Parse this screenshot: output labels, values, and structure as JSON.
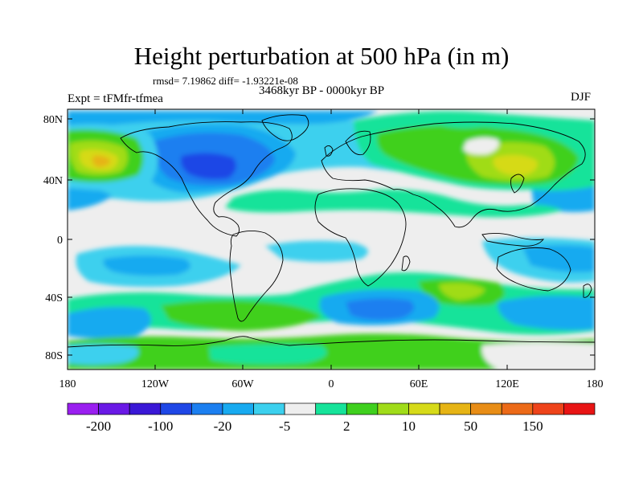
{
  "title": "Height perturbation at 500 hPa (in m)",
  "stats": "rmsd= 7.19862 diff= -1.93221e-08",
  "period": "3468kyr BP - 0000kyr BP",
  "experiment": "Expt = tFMfr-tfmea",
  "season": "DJF",
  "axes": {
    "lat_ticks": [
      "80N",
      "40N",
      "0",
      "40S",
      "80S"
    ],
    "lon_ticks": [
      "180",
      "120W",
      "60W",
      "0",
      "60E",
      "120E",
      "180"
    ]
  },
  "colorbar": {
    "colors": [
      "#9a1ff0",
      "#6a19e6",
      "#3a18d6",
      "#1f47e6",
      "#1c7ff0",
      "#18aaf0",
      "#3cd0ee",
      "#eeeeee",
      "#16e39a",
      "#3fd01e",
      "#a0dc19",
      "#d6da19",
      "#e6b415",
      "#e88d16",
      "#ec6a18",
      "#ee431a",
      "#e81414"
    ],
    "labels": [
      "-200",
      "-100",
      "-20",
      "-5",
      "2",
      "10",
      "50",
      "150"
    ]
  },
  "palette": {
    "background": "#eeeeee",
    "cyan": "#3cd0ee",
    "sky": "#18aaf0",
    "blue": "#1c7ff0",
    "deep_blue": "#1f47e6",
    "mint": "#16e39a",
    "green": "#3fd01e",
    "lime": "#a0dc19",
    "yellow": "#d6da19",
    "mustard": "#e6b415"
  }
}
